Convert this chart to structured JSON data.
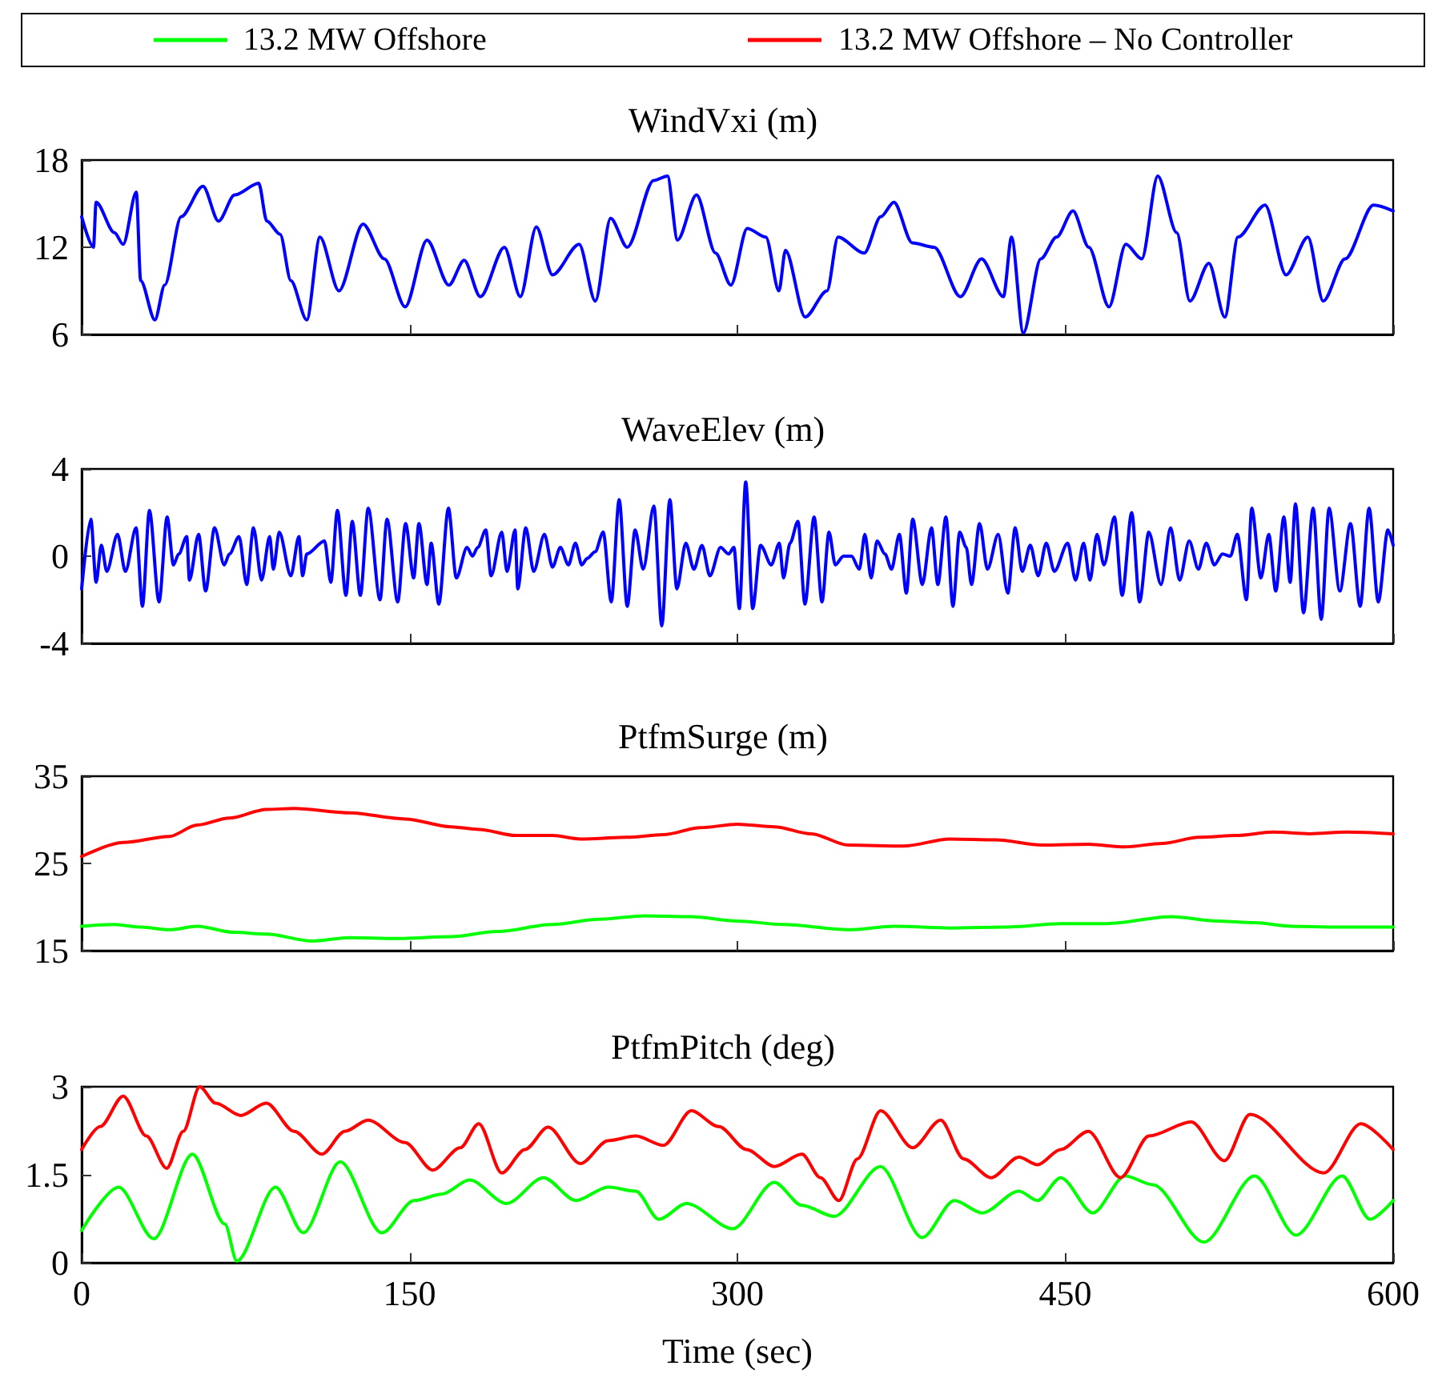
{
  "chart_data": [
    {
      "type": "line",
      "title": "WindVxi (m)",
      "xlim": [
        0,
        600
      ],
      "xticks": [
        0,
        150,
        300,
        450,
        600
      ],
      "ylim": [
        6,
        18
      ],
      "yticks": [
        6,
        12,
        18
      ],
      "tick_labels": "y",
      "grid": false,
      "series": [
        {
          "color": "#0000ff",
          "x": [
            0,
            5.4,
            6.6,
            15,
            19,
            25,
            27,
            33.5,
            38,
            45.5,
            55.5,
            62.6,
            70,
            81,
            84.7,
            90.8,
            95.7,
            103,
            109,
            117.7,
            128.7,
            138.5,
            148,
            158,
            168,
            175,
            182.4,
            193.4,
            200.7,
            208,
            215.4,
            227.6,
            235,
            242,
            249.6,
            261.7,
            268,
            272.6,
            281.3,
            290,
            297,
            304.5,
            313,
            319,
            322,
            331,
            341,
            346,
            358,
            365.6,
            371.6,
            380,
            390,
            402,
            411.7,
            421.7,
            425.4,
            430.8,
            438.8,
            446,
            453.5,
            460.8,
            470,
            477.7,
            485,
            492.3,
            501,
            507,
            515.7,
            523,
            529,
            541.4,
            551,
            561,
            568,
            578,
            591,
            600
          ],
          "values": [
            14.1,
            12.0,
            15.1,
            13.0,
            12.2,
            15.8,
            9.7,
            7.0,
            9.4,
            14.1,
            16.2,
            13.8,
            15.6,
            16.4,
            13.8,
            12.9,
            9.7,
            7.0,
            12.7,
            9.0,
            13.6,
            11.2,
            7.9,
            12.5,
            9.4,
            11.1,
            8.6,
            12.0,
            8.6,
            13.4,
            10.1,
            12.2,
            8.3,
            14.0,
            12.0,
            16.6,
            16.9,
            12.5,
            15.6,
            11.6,
            9.4,
            13.3,
            12.7,
            9.0,
            11.8,
            7.2,
            9.0,
            12.7,
            11.6,
            14.1,
            15.1,
            12.3,
            12.0,
            8.6,
            11.2,
            8.6,
            12.7,
            6.1,
            11.2,
            12.7,
            14.5,
            12.0,
            7.9,
            12.2,
            11.2,
            16.9,
            13.0,
            8.3,
            10.9,
            7.2,
            12.7,
            14.9,
            10.1,
            12.7,
            8.3,
            11.2,
            14.9,
            14.5
          ]
        }
      ]
    },
    {
      "type": "line",
      "title": "WaveElev (m)",
      "xlim": [
        0,
        600
      ],
      "xticks": [
        0,
        150,
        300,
        450,
        600
      ],
      "ylim": [
        -4,
        4
      ],
      "yticks": [
        -4,
        0,
        4
      ],
      "tick_labels": "y",
      "grid": false,
      "series": [
        {
          "color": "#0000ff",
          "x": [
            0,
            4.2,
            6.6,
            9.0,
            11.5,
            16.4,
            20.0,
            24.9,
            27.8,
            31.0,
            35.4,
            39.1,
            42.0,
            44.4,
            48.1,
            49.3,
            53.5,
            56.7,
            60.8,
            65.2,
            67.6,
            72.0,
            75.5,
            78.6,
            82.3,
            86.0,
            87.7,
            90.4,
            95.7,
            99.4,
            101.1,
            103.0,
            111.1,
            114.0,
            117.0,
            120.9,
            123.8,
            127.5,
            131.1,
            136.5,
            139.7,
            144.6,
            148.2,
            151.9,
            154.3,
            158.0,
            159.9,
            163.4,
            167.8,
            171.4,
            176.3,
            178.8,
            181.2,
            184.9,
            187.3,
            192.2,
            194.6,
            198.3,
            199.5,
            203.2,
            206.8,
            211.7,
            215.4,
            219.0,
            222.7,
            225.9,
            228.8,
            231.3,
            234.9,
            238.6,
            242.3,
            245.9,
            249.6,
            253.2,
            256.9,
            261.8,
            265.4,
            269.1,
            272.3,
            276.4,
            280.1,
            283.8,
            287.4,
            292.3,
            296.0,
            298.4,
            300.9,
            303.8,
            307.0,
            310.6,
            315.5,
            319.2,
            321.1,
            324.1,
            327.7,
            330.9,
            335.1,
            338.7,
            341.9,
            344.8,
            348.5,
            352.2,
            355.8,
            358.3,
            361.2,
            363.9,
            367.5,
            370.5,
            374.1,
            377.3,
            380.2,
            384.6,
            388.8,
            391.7,
            395.4,
            398.6,
            401.7,
            404.7,
            407.1,
            410.8,
            414.4,
            419.3,
            423.7,
            427.1,
            430.3,
            434.0,
            437.6,
            441.3,
            445.0,
            451.1,
            454.7,
            458.4,
            461.3,
            464.5,
            467.7,
            472.5,
            476.0,
            480.4,
            484.0,
            488.2,
            493.8,
            498.2,
            502.3,
            506.7,
            510.9,
            514.5,
            518.2,
            521.9,
            525.5,
            528.7,
            532.9,
            535.3,
            539.5,
            543.1,
            546.3,
            550.0,
            552.9,
            555.3,
            559.0,
            563.4,
            567.1,
            570.7,
            575.6,
            580.5,
            584.9,
            589.0,
            593.2,
            597.6,
            600
          ],
          "values": [
            -1.5,
            1.7,
            -1.2,
            0.5,
            -0.7,
            1.0,
            -0.7,
            1.3,
            -2.3,
            2.1,
            -2.1,
            1.8,
            -0.4,
            0.1,
            0.9,
            -1.1,
            1.0,
            -1.6,
            1.3,
            -0.4,
            0.1,
            0.9,
            -1.3,
            1.3,
            -1.1,
            0.9,
            -0.6,
            1.1,
            -0.9,
            0.9,
            -0.9,
            0.1,
            0.7,
            -1.2,
            2.1,
            -1.8,
            1.6,
            -1.8,
            2.2,
            -2.0,
            1.7,
            -2.1,
            1.5,
            -1.0,
            1.5,
            -1.3,
            0.6,
            -2.2,
            2.2,
            -1.0,
            0.4,
            0,
            0.4,
            1.2,
            -0.9,
            1.1,
            -0.7,
            1.2,
            -1.5,
            1.3,
            -0.7,
            1.0,
            -0.5,
            0.4,
            -0.4,
            0.6,
            -0.4,
            -0.1,
            0.2,
            1.1,
            -2.1,
            2.6,
            -2.3,
            1.2,
            -0.6,
            2.3,
            -3.2,
            2.6,
            -1.5,
            0.6,
            -0.6,
            0.5,
            -0.9,
            0.4,
            0.1,
            0.4,
            -2.4,
            3.4,
            -2.4,
            0.5,
            -0.4,
            0.6,
            -1.0,
            0.6,
            1.6,
            -2.2,
            1.8,
            -2.1,
            1.1,
            -0.4,
            0,
            0,
            -0.6,
            1.0,
            -1.0,
            0.7,
            0.1,
            -0.6,
            1.0,
            -1.7,
            1.7,
            -1.3,
            1.3,
            -1.3,
            1.8,
            -2.3,
            1.1,
            0.4,
            -1.3,
            1.5,
            -0.6,
            1.0,
            -1.7,
            1.3,
            -0.7,
            0.5,
            -0.9,
            0.6,
            -0.7,
            0.6,
            -1.1,
            0.6,
            -1.1,
            1.0,
            -0.4,
            1.8,
            -1.8,
            2.0,
            -2.1,
            1.1,
            -1.3,
            1.3,
            -1.1,
            0.7,
            -0.6,
            0.6,
            -0.4,
            0.1,
            0,
            1.0,
            -2.0,
            2.2,
            -1.0,
            1.0,
            -1.6,
            1.8,
            -1.2,
            2.4,
            -2.6,
            2.2,
            -2.9,
            2.2,
            -1.6,
            1.5,
            -2.3,
            2.2,
            -2.1,
            1.2,
            0.5
          ]
        }
      ]
    },
    {
      "type": "line",
      "title": "PtfmSurge (m)",
      "xlim": [
        0,
        600
      ],
      "xticks": [
        0,
        150,
        300,
        450,
        600
      ],
      "ylim": [
        15,
        35
      ],
      "yticks": [
        15,
        25,
        35
      ],
      "tick_labels": "y",
      "grid": false,
      "legend": "top",
      "series": [
        {
          "name": "13.2 MW Offshore",
          "color": "#00ff00",
          "x": [
            0,
            14.8,
            27.5,
            40.1,
            52.8,
            69.7,
            84.5,
            105.6,
            122.5,
            143.7,
            169,
            190.1,
            215.5,
            236.6,
            257.7,
            278.9,
            300,
            321.1,
            350.7,
            371.8,
            397.2,
            422.5,
            447.9,
            469,
            498.6,
            519.7,
            536.6,
            553.5,
            574.6,
            600
          ],
          "values": [
            17.8,
            18.0,
            17.7,
            17.4,
            17.8,
            17.1,
            16.9,
            16.1,
            16.5,
            16.4,
            16.6,
            17.2,
            18.0,
            18.6,
            19.0,
            18.9,
            18.4,
            18.0,
            17.4,
            17.8,
            17.6,
            17.7,
            18.1,
            18.1,
            18.9,
            18.4,
            18.2,
            17.8,
            17.7,
            17.7
          ]
        },
        {
          "name": "13.2 MW Offshore – No Controller",
          "color": "#ff0000",
          "x": [
            0,
            19,
            40.1,
            52.8,
            67.6,
            84.5,
            97.2,
            122.5,
            147.9,
            169,
            181.7,
            198.6,
            215.5,
            228.2,
            249.3,
            266.2,
            283.1,
            300,
            316.9,
            333.8,
            350.7,
            376,
            397.2,
            418.3,
            439.4,
            460.5,
            477.4,
            494.3,
            511.2,
            528.1,
            545,
            561.9,
            578.9,
            600
          ],
          "values": [
            25.8,
            27.4,
            28.1,
            29.4,
            30.2,
            31.2,
            31.3,
            30.8,
            30.1,
            29.2,
            28.9,
            28.2,
            28.2,
            27.8,
            28.0,
            28.3,
            29.1,
            29.5,
            29.2,
            28.4,
            27.1,
            27.0,
            27.8,
            27.7,
            27.1,
            27.2,
            26.9,
            27.3,
            28.0,
            28.2,
            28.6,
            28.4,
            28.6,
            28.4
          ]
        }
      ]
    },
    {
      "type": "line",
      "title": "PtfmPitch (deg)",
      "xlabel": "Time (sec)",
      "xlim": [
        0,
        600
      ],
      "xticks": [
        0,
        150,
        300,
        450,
        600
      ],
      "ylim": [
        0,
        3
      ],
      "yticks": [
        0,
        1.5,
        3
      ],
      "grid": false,
      "legend": "top",
      "series": [
        {
          "name": "13.2 MW Offshore",
          "color": "#00ff00",
          "x": [
            0,
            16.9,
            33,
            50.7,
            65.5,
            71,
            88.7,
            101.4,
            118.3,
            137.3,
            152.1,
            164.8,
            177.5,
            194.4,
            211.3,
            226.1,
            240.8,
            253.5,
            264.1,
            276.7,
            297.9,
            316.9,
            329.5,
            344.3,
            365.5,
            384.5,
            399.3,
            412,
            428.8,
            437.3,
            447.9,
            462.6,
            477.4,
            490.1,
            513.4,
            536.6,
            555.6,
            576.7,
            589.4,
            600
          ],
          "values": [
            0.55,
            1.29,
            0.41,
            1.85,
            0.66,
            0.03,
            1.29,
            0.51,
            1.72,
            0.51,
            1.06,
            1.17,
            1.41,
            1.01,
            1.45,
            1.06,
            1.29,
            1.22,
            0.74,
            1.01,
            0.58,
            1.37,
            0.98,
            0.79,
            1.64,
            0.43,
            1.06,
            0.85,
            1.22,
            1.06,
            1.45,
            0.85,
            1.48,
            1.33,
            0.35,
            1.48,
            0.47,
            1.48,
            0.74,
            1.06
          ]
        },
        {
          "name": "13.2 MW Offshore – No Controller",
          "color": "#ff0000",
          "x": [
            0,
            8.5,
            19,
            29.6,
            38.9,
            46.5,
            54,
            61.3,
            72.7,
            84.5,
            97.2,
            109.9,
            120.4,
            131,
            147.9,
            160.6,
            173.2,
            181.7,
            192.2,
            202.8,
            213.4,
            228.2,
            240.8,
            253.5,
            266.2,
            278.9,
            291.5,
            304.2,
            316.9,
            329.5,
            338,
            346.4,
            354.9,
            365.5,
            380.2,
            393,
            403.5,
            416,
            428.8,
            437.3,
            447.9,
            460.5,
            475.3,
            488.3,
            507.6,
            522.8,
            534.5,
            568.3,
            585.2,
            600
          ],
          "values": [
            1.93,
            2.32,
            2.84,
            2.16,
            1.61,
            2.24,
            3.0,
            2.72,
            2.51,
            2.72,
            2.24,
            1.85,
            2.24,
            2.43,
            2.05,
            1.58,
            1.96,
            2.37,
            1.53,
            1.93,
            2.31,
            1.69,
            2.08,
            2.16,
            2.0,
            2.59,
            2.32,
            1.93,
            1.64,
            1.85,
            1.45,
            1.06,
            1.77,
            2.59,
            1.96,
            2.43,
            1.77,
            1.45,
            1.8,
            1.67,
            1.93,
            2.24,
            1.45,
            2.16,
            2.4,
            1.74,
            2.53,
            1.53,
            2.37,
            1.93
          ]
        }
      ]
    }
  ]
}
